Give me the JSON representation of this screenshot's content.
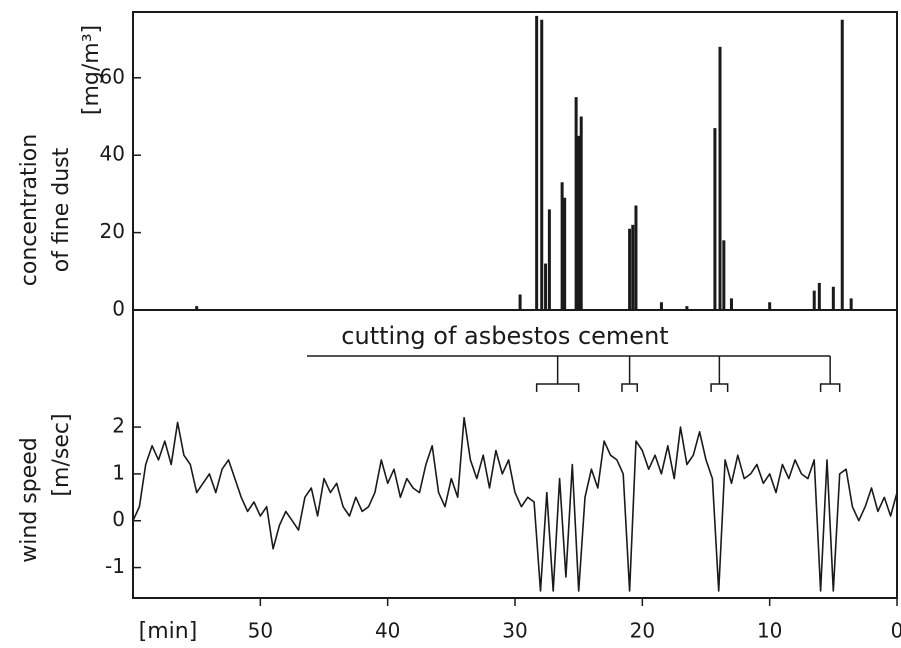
{
  "chart_data": [
    {
      "type": "bar",
      "ylabel": [
        "concentration",
        "of fine dust"
      ],
      "yunit": "[mg/m³]",
      "xlim": [
        60,
        0
      ],
      "ylim": [
        0,
        77
      ],
      "yticks": [
        0,
        20,
        40,
        60
      ],
      "color": "#1a1a1a",
      "x": [
        55,
        29.6,
        28.3,
        27.9,
        27.6,
        27.3,
        26.3,
        26.1,
        25.2,
        25.0,
        24.8,
        21.0,
        20.75,
        20.5,
        18.5,
        16.5,
        14.3,
        13.9,
        13.6,
        13.0,
        10.0,
        6.5,
        6.1,
        5.0,
        4.3,
        3.6
      ],
      "values": [
        1,
        4,
        76,
        75,
        12,
        26,
        33,
        29,
        55,
        45,
        50,
        21,
        22,
        27,
        2,
        1,
        47,
        68,
        18,
        3,
        2,
        5,
        7,
        6,
        75,
        3
      ]
    },
    {
      "type": "line",
      "ylabel": [
        "wind speed"
      ],
      "yunit": "[m/sec]",
      "xlabel": "[min]",
      "xlim": [
        60,
        0
      ],
      "ylim": [
        -1.65,
        4.5
      ],
      "yticks": [
        -1,
        0,
        1,
        2
      ],
      "xticks": [
        50,
        40,
        30,
        20,
        10,
        0
      ],
      "color": "#1a1a1a",
      "annotation": {
        "text": "cutting of asbestos cement",
        "periods": [
          [
            28.3,
            25
          ],
          [
            21.6,
            20.4
          ],
          [
            14.6,
            13.3
          ],
          [
            6,
            4.5
          ]
        ]
      },
      "x": [
        60,
        59.5,
        59,
        58.5,
        58,
        57.5,
        57,
        56.5,
        56,
        55.5,
        55,
        54.5,
        54,
        53.5,
        53,
        52.5,
        52,
        51.5,
        51,
        50.5,
        50,
        49.5,
        49,
        48.5,
        48,
        47.5,
        47,
        46.5,
        46,
        45.5,
        45,
        44.5,
        44,
        43.5,
        43,
        42.5,
        42,
        41.5,
        41,
        40.5,
        40,
        39.5,
        39,
        38.5,
        38,
        37.5,
        37,
        36.5,
        36,
        35.5,
        35,
        34.5,
        34,
        33.5,
        33,
        32.5,
        32,
        31.5,
        31,
        30.5,
        30,
        29.5,
        29,
        28.5,
        28,
        27.5,
        27,
        26.5,
        26,
        25.5,
        25,
        24.5,
        24,
        23.5,
        23,
        22.5,
        22,
        21.5,
        21,
        20.5,
        20,
        19.5,
        19,
        18.5,
        18,
        17.5,
        17,
        16.5,
        16,
        15.5,
        15,
        14.5,
        14,
        13.5,
        13,
        12.5,
        12,
        11.5,
        11,
        10.5,
        10,
        9.5,
        9,
        8.5,
        8,
        7.5,
        7,
        6.5,
        6,
        5.5,
        5,
        4.5,
        4,
        3.5,
        3,
        2.5,
        2,
        1.5,
        1,
        0.5,
        0
      ],
      "values": [
        0,
        0.3,
        1.2,
        1.6,
        1.3,
        1.7,
        1.2,
        2.1,
        1.4,
        1.2,
        0.6,
        0.8,
        1.0,
        0.6,
        1.1,
        1.3,
        0.9,
        0.5,
        0.2,
        0.4,
        0.1,
        0.3,
        -0.6,
        -0.1,
        0.2,
        0.0,
        -0.2,
        0.5,
        0.7,
        0.1,
        0.9,
        0.6,
        0.8,
        0.3,
        0.1,
        0.5,
        0.2,
        0.3,
        0.6,
        1.3,
        0.8,
        1.1,
        0.5,
        0.9,
        0.7,
        0.6,
        1.2,
        1.6,
        0.6,
        0.3,
        0.9,
        0.5,
        2.2,
        1.3,
        0.9,
        1.4,
        0.7,
        1.5,
        1.0,
        1.3,
        0.6,
        0.3,
        0.5,
        0.4,
        -1.5,
        0.6,
        -1.5,
        0.9,
        -1.2,
        1.2,
        -1.5,
        0.5,
        1.1,
        0.7,
        1.7,
        1.4,
        1.3,
        1.0,
        -1.5,
        1.7,
        1.5,
        1.1,
        1.4,
        1.0,
        1.6,
        0.9,
        2.0,
        1.2,
        1.4,
        1.9,
        1.3,
        0.9,
        -1.5,
        1.3,
        0.8,
        1.4,
        0.9,
        1.0,
        1.2,
        0.8,
        1.0,
        0.6,
        1.2,
        0.9,
        1.3,
        1.0,
        0.9,
        1.3,
        -1.5,
        1.3,
        -1.5,
        1.0,
        1.1,
        0.3,
        0.0,
        0.3,
        0.7,
        0.2,
        0.5,
        0.1,
        0.6
      ]
    }
  ]
}
